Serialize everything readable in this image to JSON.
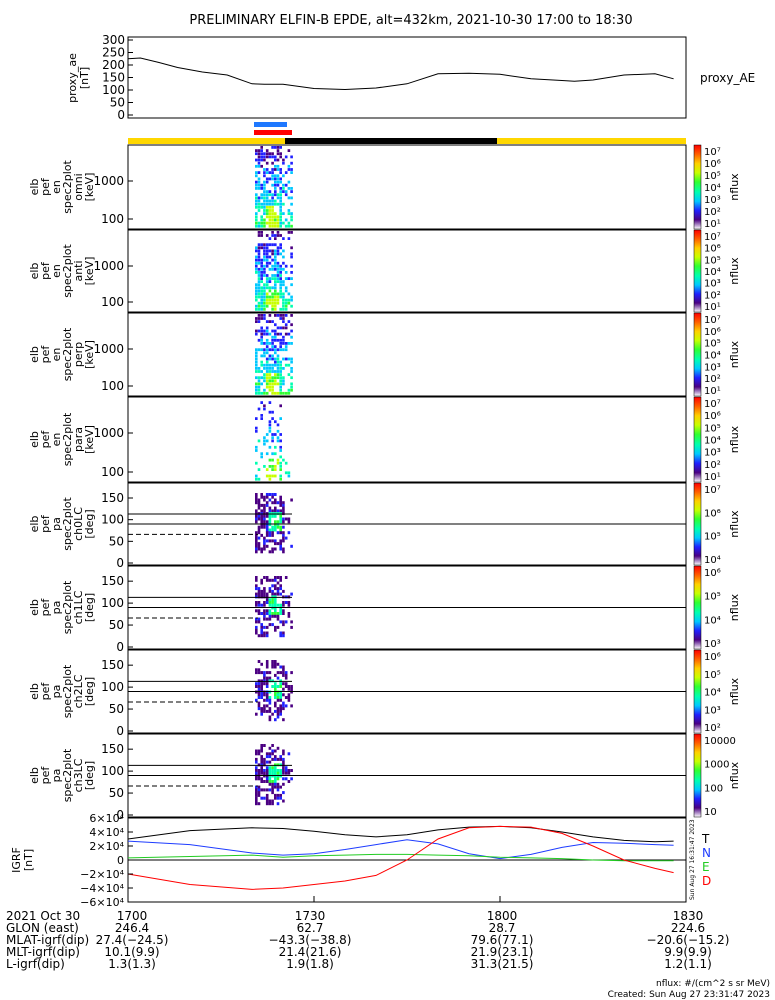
{
  "title": "PRELIMINARY ELFIN-B EPDE, alt=432km, 2021-10-30 17:00 to 18:30",
  "proxy_ae": {
    "ylabel_lines": [
      "proxy_ae",
      "[nT]"
    ],
    "yticks": [
      "0",
      "50",
      "100",
      "150",
      "200",
      "250",
      "300"
    ],
    "legend": "proxy_AE",
    "ylim": [
      0,
      300
    ],
    "t": [
      0,
      2,
      5,
      8,
      12,
      16,
      20,
      22,
      25,
      30,
      35,
      40,
      45,
      50,
      55,
      60,
      65,
      70,
      72,
      75,
      80,
      85,
      88
    ],
    "v": [
      225,
      228,
      210,
      190,
      172,
      160,
      125,
      123,
      123,
      106,
      102,
      108,
      125,
      165,
      167,
      163,
      145,
      138,
      135,
      140,
      160,
      165,
      145
    ]
  },
  "bars": {
    "blue_label_color": "#1e78ff",
    "red_label_color": "#ff0000",
    "yellow": "#ffd700",
    "black": "#000000"
  },
  "spec_panels": [
    {
      "ylabel_lines": [
        "elb",
        "pef",
        "en",
        "spec2plot",
        "omni",
        "[keV]"
      ],
      "yticks": [
        "100",
        "1000"
      ],
      "cbar_ticks": [
        "10⁷",
        "10⁶",
        "10⁵",
        "10⁴",
        "10³",
        "10²",
        "10¹"
      ],
      "cbar_label": "nflux"
    },
    {
      "ylabel_lines": [
        "elb",
        "pef",
        "en",
        "spec2plot",
        "anti",
        "[keV]"
      ],
      "yticks": [
        "100",
        "1000"
      ],
      "cbar_ticks": [
        "10⁷",
        "10⁶",
        "10⁵",
        "10⁴",
        "10³",
        "10²",
        "10¹"
      ],
      "cbar_label": "nflux"
    },
    {
      "ylabel_lines": [
        "elb",
        "pef",
        "en",
        "spec2plot",
        "perp",
        "[keV]"
      ],
      "yticks": [
        "100",
        "1000"
      ],
      "cbar_ticks": [
        "10⁷",
        "10⁶",
        "10⁵",
        "10⁴",
        "10³",
        "10²",
        "10¹"
      ],
      "cbar_label": "nflux"
    },
    {
      "ylabel_lines": [
        "elb",
        "pef",
        "en",
        "spec2plot",
        "para",
        "[keV]"
      ],
      "yticks": [
        "100",
        "1000"
      ],
      "cbar_ticks": [
        "10⁷",
        "10⁶",
        "10⁵",
        "10⁴",
        "10³",
        "10²",
        "10¹"
      ],
      "cbar_label": "nflux"
    },
    {
      "ylabel_lines": [
        "elb",
        "pef",
        "pa",
        "spec2plot",
        "ch0LC",
        "[deg]"
      ],
      "yticks": [
        "0",
        "50",
        "100",
        "150"
      ],
      "cbar_ticks": [
        "10⁷",
        "10⁶",
        "10⁵",
        "10⁴"
      ],
      "cbar_label": "nflux"
    },
    {
      "ylabel_lines": [
        "elb",
        "pef",
        "pa",
        "spec2plot",
        "ch1LC",
        "[deg]"
      ],
      "yticks": [
        "0",
        "50",
        "100",
        "150"
      ],
      "cbar_ticks": [
        "10⁶",
        "10⁵",
        "10⁴",
        "10³"
      ],
      "cbar_label": "nflux"
    },
    {
      "ylabel_lines": [
        "elb",
        "pef",
        "pa",
        "spec2plot",
        "ch2LC",
        "[deg]"
      ],
      "yticks": [
        "0",
        "50",
        "100",
        "150"
      ],
      "cbar_ticks": [
        "10⁶",
        "10⁵",
        "10⁴",
        "10³",
        "10²"
      ],
      "cbar_label": "nflux"
    },
    {
      "ylabel_lines": [
        "elb",
        "pef",
        "pa",
        "spec2plot",
        "ch3LC",
        "[deg]"
      ],
      "yticks": [
        "0",
        "50",
        "100",
        "150"
      ],
      "cbar_ticks": [
        "10000",
        "1000",
        "100",
        "10"
      ],
      "cbar_label": "nflux"
    }
  ],
  "igrf": {
    "ylabel_lines": [
      "IGRF",
      "[nT]"
    ],
    "yticks": [
      "−6×10⁴",
      "−4×10⁴",
      "−2×10⁴",
      "0",
      "2×10⁴",
      "4×10⁴",
      "6×10⁴"
    ],
    "legend": [
      {
        "label": "T",
        "color": "#000000"
      },
      {
        "label": "N",
        "color": "#1e3cff"
      },
      {
        "label": "E",
        "color": "#22cc22"
      },
      {
        "label": "D",
        "color": "#ff0000"
      }
    ],
    "side_stamp": "Sun Aug 27 16:31:47 2023",
    "ylim": [
      -60000,
      60000
    ],
    "t": [
      0,
      10,
      20,
      25,
      30,
      35,
      40,
      45,
      50,
      55,
      60,
      65,
      70,
      75,
      80,
      85,
      88
    ],
    "T": [
      30000,
      42000,
      46000,
      45000,
      41000,
      36000,
      33000,
      36000,
      43000,
      47000,
      48000,
      46000,
      40000,
      33000,
      28000,
      26000,
      27000
    ],
    "N": [
      27000,
      22000,
      10000,
      7000,
      9000,
      15000,
      22000,
      29000,
      23000,
      9000,
      2000,
      8000,
      18000,
      25000,
      24000,
      22000,
      21000
    ],
    "E": [
      3000,
      5000,
      7000,
      4000,
      6000,
      7000,
      8000,
      8000,
      7000,
      6000,
      4000,
      3000,
      2000,
      0,
      -1000,
      -1000,
      -1000
    ],
    "D": [
      -20000,
      -35000,
      -42000,
      -40000,
      -35000,
      -30000,
      -22000,
      0,
      30000,
      46000,
      48000,
      47000,
      38000,
      20000,
      0,
      -12000,
      -18000
    ]
  },
  "footer": {
    "rows": [
      {
        "label": "2021 Oct 30",
        "values": [
          "1700",
          "1730",
          "1800",
          "1830"
        ]
      },
      {
        "label": "GLON (east)",
        "values": [
          "246.4",
          "62.7",
          "28.7",
          "224.6"
        ]
      },
      {
        "label": "MLAT-igrf(dip)",
        "values": [
          "27.4(−24.5)",
          "−43.3(−38.8)",
          "79.6(77.1)",
          "−20.6(−15.2)"
        ]
      },
      {
        "label": "MLT-igrf(dip)",
        "values": [
          "10.1(9.9)",
          "21.4(21.6)",
          "21.9(23.1)",
          "9.9(9.9)"
        ]
      },
      {
        "label": "L-igrf(dip)",
        "values": [
          "1.3(1.3)",
          "1.9(1.8)",
          "31.3(21.5)",
          "1.2(1.1)"
        ]
      }
    ],
    "nflux_units": "nflux: #/(cm^2 s sr MeV)",
    "created": "Created: Sun Aug 27 23:31:47 2023"
  }
}
